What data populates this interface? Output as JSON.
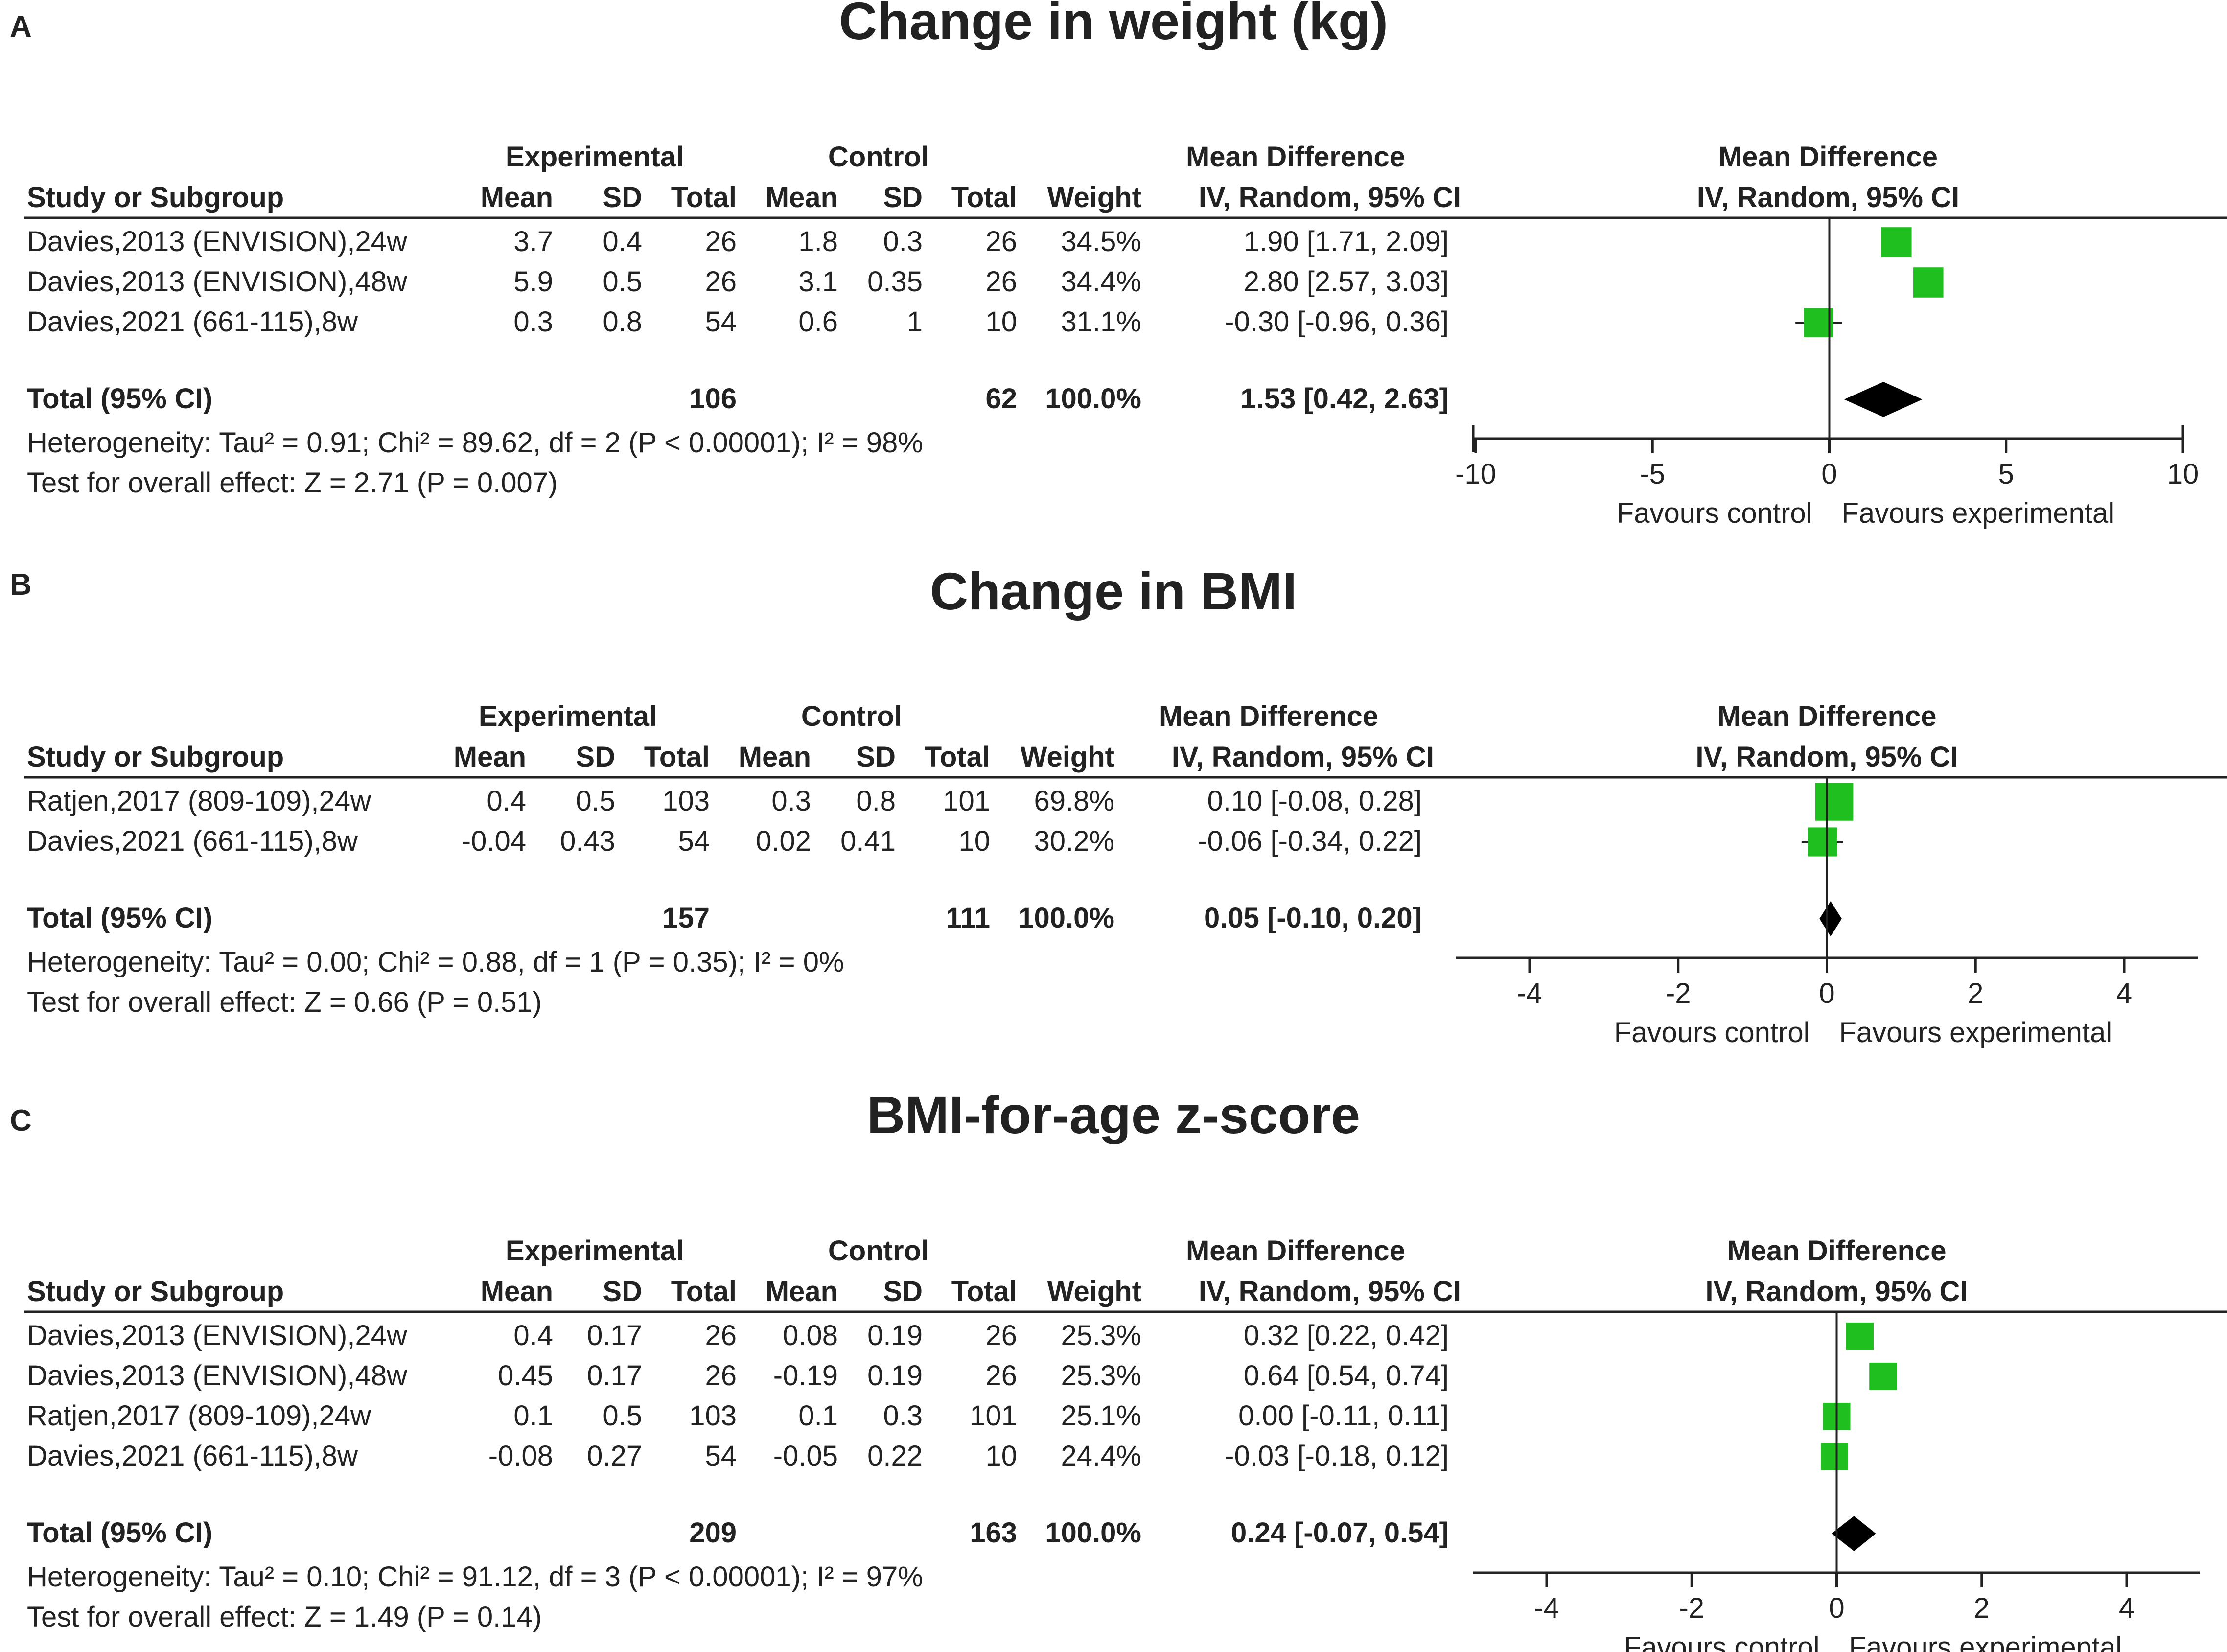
{
  "columns": {
    "study": "Study or Subgroup",
    "group_experimental": "Experimental",
    "group_control": "Control",
    "mean": "Mean",
    "sd": "SD",
    "total": "Total",
    "weight": "Weight",
    "md_header": "Mean Difference",
    "md_method": "IV, Random, 95% CI",
    "favours_left": "Favours control",
    "favours_right": "Favours experimental"
  },
  "chart_data": [
    {
      "type": "forest",
      "panel_label": "A",
      "title": "Change in weight (kg)",
      "xlim": [
        -10,
        10
      ],
      "ticks": [
        "-10",
        "-5",
        "0",
        "5",
        "10"
      ],
      "studies": [
        {
          "name": "Davies,2013 (ENVISION),24w",
          "exp_mean": "3.7",
          "exp_sd": "0.4",
          "exp_total": "26",
          "ctl_mean": "1.8",
          "ctl_sd": "0.3",
          "ctl_total": "26",
          "weight": "34.5%",
          "md_text": "1.90 [1.71, 2.09]",
          "md": 1.9,
          "lo": 1.71,
          "hi": 2.09,
          "w": 34.5
        },
        {
          "name": "Davies,2013 (ENVISION),48w",
          "exp_mean": "5.9",
          "exp_sd": "0.5",
          "exp_total": "26",
          "ctl_mean": "3.1",
          "ctl_sd": "0.35",
          "ctl_total": "26",
          "weight": "34.4%",
          "md_text": "2.80 [2.57, 3.03]",
          "md": 2.8,
          "lo": 2.57,
          "hi": 3.03,
          "w": 34.4
        },
        {
          "name": "Davies,2021 (661-115),8w",
          "exp_mean": "0.3",
          "exp_sd": "0.8",
          "exp_total": "54",
          "ctl_mean": "0.6",
          "ctl_sd": "1",
          "ctl_total": "10",
          "weight": "31.1%",
          "md_text": "-0.30 [-0.96, 0.36]",
          "md": -0.3,
          "lo": -0.96,
          "hi": 0.36,
          "w": 31.1
        }
      ],
      "total": {
        "label": "Total (95% CI)",
        "exp_total": "106",
        "ctl_total": "62",
        "weight": "100.0%",
        "md_text": "1.53 [0.42, 2.63]",
        "md": 1.53,
        "lo": 0.42,
        "hi": 2.63
      },
      "heterogeneity": "Heterogeneity: Tau² = 0.91; Chi² = 89.62, df = 2 (P < 0.00001); I² = 98%",
      "overall_effect": "Test for overall effect: Z = 2.71 (P = 0.007)"
    },
    {
      "type": "forest",
      "panel_label": "B",
      "title": "Change in BMI",
      "xlim": [
        -5,
        5
      ],
      "ticks": [
        "-4",
        "-2",
        "0",
        "2",
        "4"
      ],
      "studies": [
        {
          "name": "Ratjen,2017 (809-109),24w",
          "exp_mean": "0.4",
          "exp_sd": "0.5",
          "exp_total": "103",
          "ctl_mean": "0.3",
          "ctl_sd": "0.8",
          "ctl_total": "101",
          "weight": "69.8%",
          "md_text": "0.10 [-0.08, 0.28]",
          "md": 0.1,
          "lo": -0.08,
          "hi": 0.28,
          "w": 69.8
        },
        {
          "name": "Davies,2021 (661-115),8w",
          "exp_mean": "-0.04",
          "exp_sd": "0.43",
          "exp_total": "54",
          "ctl_mean": "0.02",
          "ctl_sd": "0.41",
          "ctl_total": "10",
          "weight": "30.2%",
          "md_text": "-0.06 [-0.34, 0.22]",
          "md": -0.06,
          "lo": -0.34,
          "hi": 0.22,
          "w": 30.2
        }
      ],
      "total": {
        "label": "Total (95% CI)",
        "exp_total": "157",
        "ctl_total": "111",
        "weight": "100.0%",
        "md_text": "0.05 [-0.10, 0.20]",
        "md": 0.05,
        "lo": -0.1,
        "hi": 0.2
      },
      "heterogeneity": "Heterogeneity: Tau² = 0.00; Chi² = 0.88, df = 1 (P = 0.35); I² = 0%",
      "overall_effect": "Test for overall effect: Z = 0.66 (P = 0.51)"
    },
    {
      "type": "forest",
      "panel_label": "C",
      "title": "BMI-for-age z-score",
      "xlim": [
        -5,
        5
      ],
      "ticks": [
        "-4",
        "-2",
        "0",
        "2",
        "4"
      ],
      "studies": [
        {
          "name": "Davies,2013 (ENVISION),24w",
          "exp_mean": "0.4",
          "exp_sd": "0.17",
          "exp_total": "26",
          "ctl_mean": "0.08",
          "ctl_sd": "0.19",
          "ctl_total": "26",
          "weight": "25.3%",
          "md_text": "0.32 [0.22, 0.42]",
          "md": 0.32,
          "lo": 0.22,
          "hi": 0.42,
          "w": 25.3
        },
        {
          "name": "Davies,2013 (ENVISION),48w",
          "exp_mean": "0.45",
          "exp_sd": "0.17",
          "exp_total": "26",
          "ctl_mean": "-0.19",
          "ctl_sd": "0.19",
          "ctl_total": "26",
          "weight": "25.3%",
          "md_text": "0.64 [0.54, 0.74]",
          "md": 0.64,
          "lo": 0.54,
          "hi": 0.74,
          "w": 25.3
        },
        {
          "name": "Ratjen,2017 (809-109),24w",
          "exp_mean": "0.1",
          "exp_sd": "0.5",
          "exp_total": "103",
          "ctl_mean": "0.1",
          "ctl_sd": "0.3",
          "ctl_total": "101",
          "weight": "25.1%",
          "md_text": "0.00 [-0.11, 0.11]",
          "md": 0.0,
          "lo": -0.11,
          "hi": 0.11,
          "w": 25.1
        },
        {
          "name": "Davies,2021 (661-115),8w",
          "exp_mean": "-0.08",
          "exp_sd": "0.27",
          "exp_total": "54",
          "ctl_mean": "-0.05",
          "ctl_sd": "0.22",
          "ctl_total": "10",
          "weight": "24.4%",
          "md_text": "-0.03 [-0.18, 0.12]",
          "md": -0.03,
          "lo": -0.18,
          "hi": 0.12,
          "w": 24.4
        }
      ],
      "total": {
        "label": "Total (95% CI)",
        "exp_total": "209",
        "ctl_total": "163",
        "weight": "100.0%",
        "md_text": "0.24 [-0.07, 0.54]",
        "md": 0.24,
        "lo": -0.07,
        "hi": 0.54
      },
      "heterogeneity": "Heterogeneity: Tau² = 0.10; Chi² = 91.12, df = 3 (P < 0.00001); I² = 97%",
      "overall_effect": "Test for overall effect: Z = 1.49 (P = 0.14)"
    }
  ],
  "colors": {
    "square": "#1fbf1f",
    "diamond": "#000000",
    "line": "#222222",
    "text": "#222222"
  }
}
